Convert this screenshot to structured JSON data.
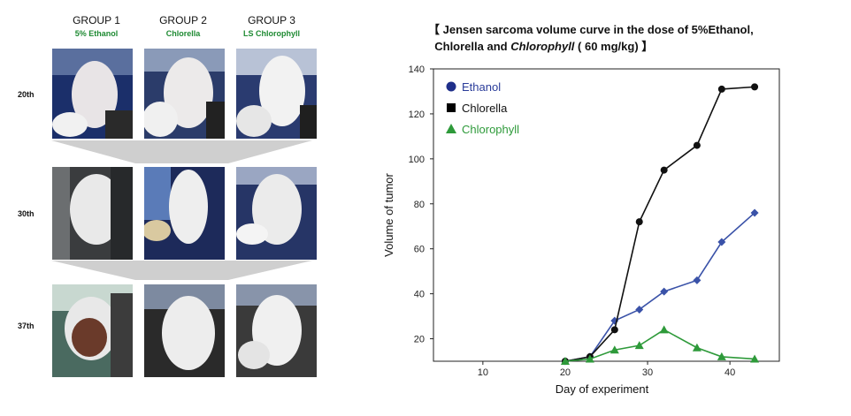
{
  "groups": [
    {
      "title": "GROUP 1",
      "subtitle": "5% Ethanol"
    },
    {
      "title": "GROUP 2",
      "subtitle": "Chlorella"
    },
    {
      "title": "GROUP 3",
      "subtitle": "LS Chlorophyll"
    }
  ],
  "rows": [
    "20th",
    "30th",
    "37th"
  ],
  "chart_data": {
    "type": "line",
    "title_parts": {
      "line1": "【 Jensen sarcoma volume curve in the dose of 5%Ethanol,",
      "line2_a": "Chlorella and ",
      "line2_italic": "Chlorophyll",
      "line2_b": " ( 60 mg/kg) 】"
    },
    "xlabel": "Day of experiment",
    "ylabel": "Volume of tumor",
    "xlim": [
      4,
      46
    ],
    "ylim": [
      10,
      140
    ],
    "x_ticks": [
      10,
      20,
      30,
      40
    ],
    "y_ticks": [
      20,
      40,
      60,
      80,
      100,
      120,
      140
    ],
    "legend_position": "top-left",
    "series": [
      {
        "name": "Ethanol",
        "color": "#3a52a8",
        "marker": "diamond",
        "x": [
          20,
          23,
          26,
          29,
          32,
          36,
          39,
          43
        ],
        "y": [
          10,
          12,
          28,
          33,
          41,
          46,
          63,
          76
        ]
      },
      {
        "name": "Chlorella",
        "color": "#111111",
        "marker": "circle",
        "x": [
          20,
          23,
          26,
          29,
          32,
          36,
          39,
          43
        ],
        "y": [
          10,
          12,
          24,
          72,
          95,
          106,
          131,
          132
        ]
      },
      {
        "name": "Chlorophyll",
        "color": "#2e9a3a",
        "marker": "triangle",
        "x": [
          20,
          23,
          26,
          29,
          32,
          36,
          39,
          43
        ],
        "y": [
          10,
          11,
          15,
          17,
          24,
          16,
          12,
          11
        ]
      }
    ],
    "legend": [
      {
        "label": "Ethanol",
        "symbol": "circle",
        "color": "#1f2f8a",
        "text_color": "#2a3c9a"
      },
      {
        "label": "Chlorella",
        "symbol": "square",
        "color": "#000000",
        "text_color": "#111111"
      },
      {
        "label": "Chlorophyll",
        "symbol": "triangle",
        "color": "#2e9a3a",
        "text_color": "#2e9a3a"
      }
    ]
  }
}
